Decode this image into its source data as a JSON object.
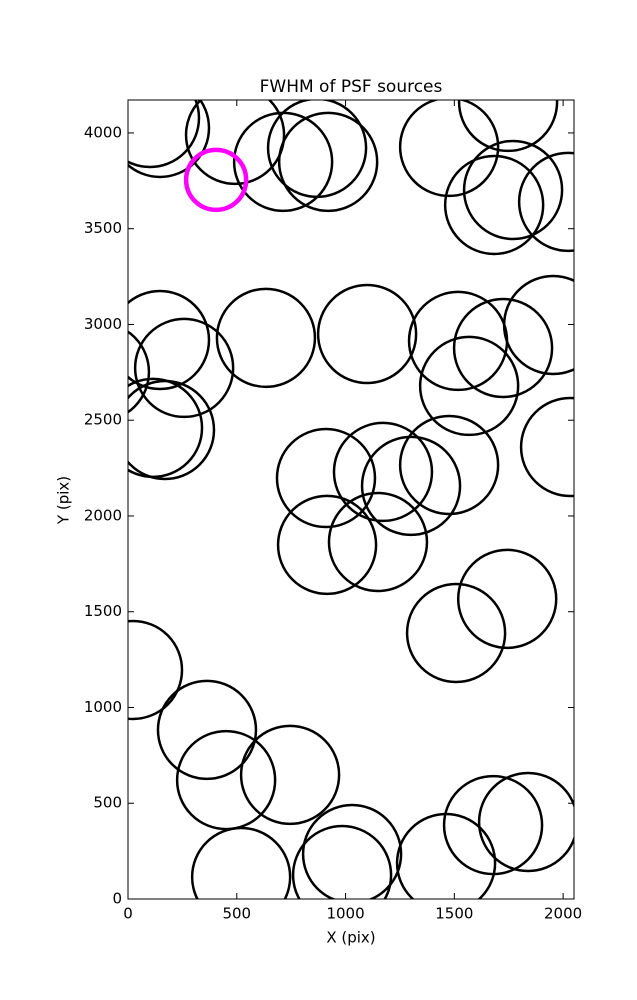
{
  "chart_data": {
    "type": "scatter",
    "title": "FWHM of PSF sources",
    "x_label": "X (pix)",
    "y_label": "Y (pix)",
    "xlim": [
      0,
      2050
    ],
    "ylim": [
      0,
      4172
    ],
    "xticks": [
      0,
      500,
      1000,
      1500,
      2000
    ],
    "yticks": [
      0,
      500,
      1000,
      1500,
      2000,
      2500,
      3000,
      3500,
      4000
    ],
    "grid": false,
    "series": [
      {
        "color": "#000000",
        "x": [
          101,
          147,
          492,
          713,
          869,
          920,
          1476,
          1747,
          1770,
          1683,
          2023,
          147,
          258,
          -129,
          115,
          170,
          634,
          1099,
          1517,
          1724,
          1954,
          1568,
          2032,
          910,
          1172,
          1301,
          1476,
          915,
          1149,
          1508,
          1743,
          23,
          363,
          451,
          745,
          520,
          984,
          1030,
          1462,
          1678,
          1839
        ],
        "y": [
          4078,
          4026,
          3990,
          3849,
          3922,
          3849,
          3927,
          4162,
          3702,
          3624,
          3640,
          2919,
          2773,
          2752,
          2460,
          2449,
          2930,
          2950,
          2914,
          2877,
          2997,
          2679,
          2360,
          2198,
          2230,
          2157,
          2266,
          1849,
          1864,
          1389,
          1567,
          1196,
          883,
          621,
          648,
          115,
          125,
          235,
          188,
          386,
          402
        ]
      },
      {
        "color": "#ff00ff",
        "x": [
          405
        ],
        "y": [
          3755
        ]
      }
    ]
  }
}
